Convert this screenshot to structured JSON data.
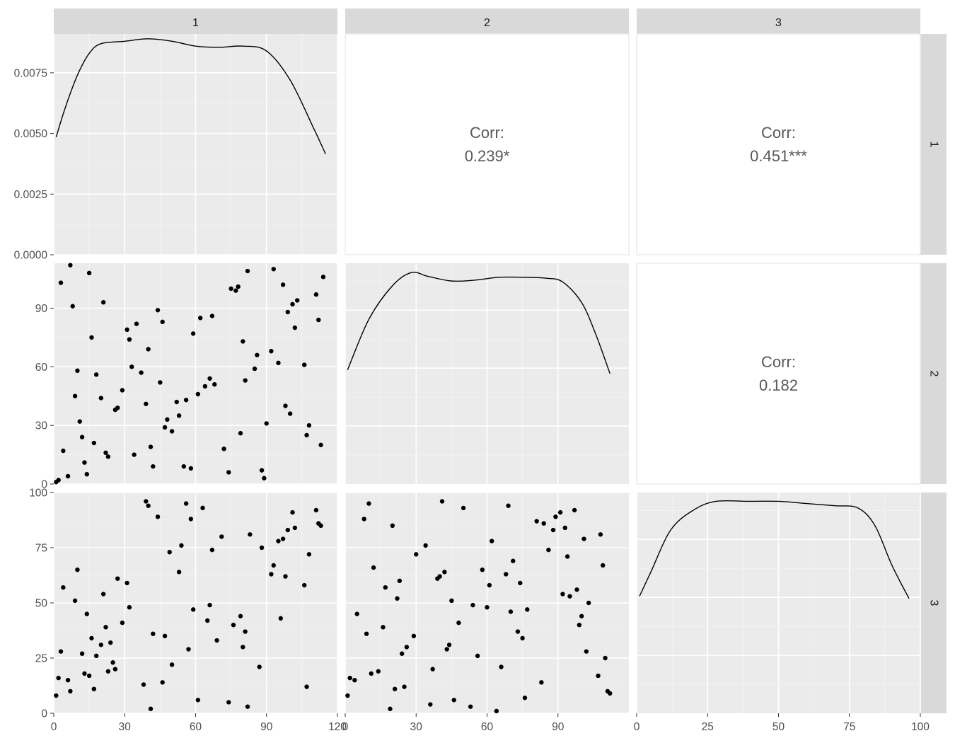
{
  "variables": [
    "1",
    "2",
    "3"
  ],
  "colors": {
    "panel_bg": "#ebebeb",
    "grid_major": "#ffffff",
    "grid_minor": "#f4f4f4",
    "strip_bg": "#d9d9d9",
    "point": "#000000",
    "line": "#000000",
    "corr_text": "#595959",
    "axis_text": "#4d4d4d"
  },
  "chart_data": {
    "type": "scatter",
    "kind": "scatterplot-matrix (GGally ggpairs)",
    "variables": [
      "1",
      "2",
      "3"
    ],
    "upper_panels": [
      {
        "row": "1",
        "col": "2",
        "label": "Corr:",
        "value": "0.239*"
      },
      {
        "row": "1",
        "col": "3",
        "label": "Corr:",
        "value": "0.451***"
      },
      {
        "row": "2",
        "col": "3",
        "label": "Corr:",
        "value": "0.182"
      }
    ],
    "axes": {
      "x": {
        "1": {
          "range": [
            0,
            120
          ],
          "ticks": [
            0,
            30,
            60,
            90,
            120
          ],
          "tick_labels": [
            "0",
            "30",
            "60",
            "90",
            "120"
          ]
        },
        "2": {
          "range": [
            0,
            120
          ],
          "ticks": [
            0,
            30,
            60,
            90
          ],
          "tick_labels": [
            "0",
            "30",
            "60",
            "90"
          ]
        },
        "3": {
          "range": [
            0,
            100
          ],
          "ticks": [
            0,
            25,
            50,
            75,
            100
          ],
          "tick_labels": [
            "0",
            "25",
            "50",
            "75",
            "100"
          ]
        }
      },
      "y": {
        "density_1": {
          "range": [
            0,
            0.0091
          ],
          "ticks": [
            0,
            0.0025,
            0.005,
            0.0075
          ],
          "tick_labels": [
            "0.0000",
            "0.0025",
            "0.0050",
            "0.0075"
          ]
        },
        "2": {
          "range": [
            0,
            113
          ],
          "ticks": [
            0,
            30,
            60,
            90
          ],
          "tick_labels": [
            "0",
            "30",
            "60",
            "90"
          ]
        },
        "3": {
          "range": [
            0,
            100
          ],
          "ticks": [
            0,
            25,
            50,
            75,
            100
          ],
          "tick_labels": [
            "0",
            "25",
            "50",
            "75",
            "100"
          ]
        }
      }
    },
    "densities": {
      "1": [
        [
          1,
          0.00485
        ],
        [
          5,
          0.0061
        ],
        [
          10,
          0.0074
        ],
        [
          15,
          0.0083
        ],
        [
          20,
          0.0087
        ],
        [
          30,
          0.0088
        ],
        [
          40,
          0.0089
        ],
        [
          50,
          0.0088
        ],
        [
          60,
          0.0086
        ],
        [
          70,
          0.00855
        ],
        [
          80,
          0.0086
        ],
        [
          90,
          0.0084
        ],
        [
          100,
          0.0072
        ],
        [
          110,
          0.0052
        ],
        [
          115,
          0.00415
        ]
      ],
      "2": [
        [
          1,
          0.0061
        ],
        [
          10,
          0.0088
        ],
        [
          20,
          0.0106
        ],
        [
          28,
          0.0113
        ],
        [
          35,
          0.0111
        ],
        [
          45,
          0.01085
        ],
        [
          55,
          0.0109
        ],
        [
          65,
          0.01105
        ],
        [
          75,
          0.01105
        ],
        [
          85,
          0.011
        ],
        [
          92,
          0.0108
        ],
        [
          100,
          0.0097
        ],
        [
          106,
          0.008
        ],
        [
          112,
          0.0059
        ]
      ],
      "3": [
        [
          1,
          0.0053
        ],
        [
          5,
          0.0064
        ],
        [
          12,
          0.0083
        ],
        [
          20,
          0.0092
        ],
        [
          28,
          0.0096
        ],
        [
          40,
          0.0096
        ],
        [
          50,
          0.0096
        ],
        [
          60,
          0.0095
        ],
        [
          70,
          0.0094
        ],
        [
          78,
          0.0093
        ],
        [
          84,
          0.0085
        ],
        [
          90,
          0.0067
        ],
        [
          96,
          0.0052
        ]
      ]
    },
    "density_y_max": {
      "1": 0.0091,
      "2": 0.0118,
      "3": 0.01
    },
    "scatter_2_vs_1": [
      [
        1,
        1
      ],
      [
        2,
        2
      ],
      [
        3,
        103
      ],
      [
        4,
        17
      ],
      [
        6,
        4
      ],
      [
        7,
        112
      ],
      [
        8,
        91
      ],
      [
        9,
        45
      ],
      [
        10,
        58
      ],
      [
        11,
        32
      ],
      [
        12,
        24
      ],
      [
        13,
        11
      ],
      [
        14,
        5
      ],
      [
        15,
        108
      ],
      [
        16,
        75
      ],
      [
        17,
        21
      ],
      [
        18,
        56
      ],
      [
        20,
        44
      ],
      [
        21,
        93
      ],
      [
        22,
        16
      ],
      [
        23,
        14
      ],
      [
        26,
        38
      ],
      [
        27,
        39
      ],
      [
        29,
        48
      ],
      [
        31,
        79
      ],
      [
        32,
        74
      ],
      [
        33,
        60
      ],
      [
        34,
        15
      ],
      [
        35,
        82
      ],
      [
        37,
        57
      ],
      [
        39,
        41
      ],
      [
        40,
        69
      ],
      [
        41,
        19
      ],
      [
        42,
        9
      ],
      [
        44,
        89
      ],
      [
        45,
        52
      ],
      [
        46,
        83
      ],
      [
        47,
        29
      ],
      [
        48,
        33
      ],
      [
        50,
        27
      ],
      [
        52,
        42
      ],
      [
        53,
        35
      ],
      [
        55,
        9
      ],
      [
        56,
        43
      ],
      [
        58,
        8
      ],
      [
        59,
        77
      ],
      [
        61,
        46
      ],
      [
        62,
        85
      ],
      [
        64,
        50
      ],
      [
        66,
        54
      ],
      [
        67,
        86
      ],
      [
        68,
        51
      ],
      [
        72,
        18
      ],
      [
        74,
        6
      ],
      [
        75,
        100
      ],
      [
        77,
        99
      ],
      [
        78,
        101
      ],
      [
        79,
        26
      ],
      [
        80,
        73
      ],
      [
        81,
        53
      ],
      [
        82,
        109
      ],
      [
        85,
        59
      ],
      [
        86,
        66
      ],
      [
        88,
        7
      ],
      [
        89,
        3
      ],
      [
        90,
        31
      ],
      [
        92,
        68
      ],
      [
        93,
        110
      ],
      [
        95,
        62
      ],
      [
        97,
        102
      ],
      [
        98,
        40
      ],
      [
        99,
        88
      ],
      [
        100,
        36
      ],
      [
        101,
        92
      ],
      [
        102,
        80
      ],
      [
        103,
        94
      ],
      [
        106,
        61
      ],
      [
        107,
        25
      ],
      [
        108,
        30
      ],
      [
        111,
        97
      ],
      [
        112,
        84
      ],
      [
        113,
        20
      ],
      [
        114,
        106
      ]
    ],
    "scatter_3_vs_1": [
      [
        1,
        8
      ],
      [
        2,
        16
      ],
      [
        3,
        28
      ],
      [
        4,
        57
      ],
      [
        6,
        15
      ],
      [
        7,
        10
      ],
      [
        9,
        51
      ],
      [
        10,
        65
      ],
      [
        12,
        27
      ],
      [
        13,
        18
      ],
      [
        14,
        45
      ],
      [
        15,
        17
      ],
      [
        16,
        34
      ],
      [
        17,
        11
      ],
      [
        18,
        26
      ],
      [
        20,
        31
      ],
      [
        21,
        54
      ],
      [
        22,
        39
      ],
      [
        23,
        19
      ],
      [
        24,
        32
      ],
      [
        25,
        23
      ],
      [
        26,
        20
      ],
      [
        27,
        61
      ],
      [
        29,
        41
      ],
      [
        31,
        59
      ],
      [
        32,
        48
      ],
      [
        38,
        13
      ],
      [
        39,
        96
      ],
      [
        40,
        94
      ],
      [
        41,
        2
      ],
      [
        42,
        36
      ],
      [
        44,
        89
      ],
      [
        46,
        14
      ],
      [
        47,
        35
      ],
      [
        49,
        73
      ],
      [
        50,
        22
      ],
      [
        53,
        64
      ],
      [
        54,
        76
      ],
      [
        56,
        95
      ],
      [
        57,
        29
      ],
      [
        58,
        88
      ],
      [
        59,
        47
      ],
      [
        61,
        6
      ],
      [
        63,
        93
      ],
      [
        65,
        42
      ],
      [
        66,
        49
      ],
      [
        67,
        74
      ],
      [
        69,
        33
      ],
      [
        71,
        80
      ],
      [
        74,
        5
      ],
      [
        76,
        40
      ],
      [
        79,
        44
      ],
      [
        80,
        30
      ],
      [
        81,
        37
      ],
      [
        82,
        3
      ],
      [
        83,
        81
      ],
      [
        87,
        21
      ],
      [
        88,
        75
      ],
      [
        92,
        63
      ],
      [
        93,
        67
      ],
      [
        95,
        78
      ],
      [
        96,
        43
      ],
      [
        97,
        79
      ],
      [
        98,
        62
      ],
      [
        99,
        83
      ],
      [
        101,
        91
      ],
      [
        102,
        84
      ],
      [
        106,
        58
      ],
      [
        107,
        12
      ],
      [
        108,
        72
      ],
      [
        111,
        92
      ],
      [
        112,
        86
      ],
      [
        113,
        85
      ]
    ],
    "scatter_3_vs_2": [
      [
        1,
        8
      ],
      [
        2,
        16
      ],
      [
        4,
        15
      ],
      [
        5,
        45
      ],
      [
        8,
        88
      ],
      [
        9,
        36
      ],
      [
        10,
        95
      ],
      [
        11,
        18
      ],
      [
        12,
        66
      ],
      [
        14,
        19
      ],
      [
        16,
        39
      ],
      [
        17,
        57
      ],
      [
        19,
        2
      ],
      [
        20,
        85
      ],
      [
        21,
        11
      ],
      [
        22,
        52
      ],
      [
        23,
        60
      ],
      [
        24,
        27
      ],
      [
        25,
        12
      ],
      [
        26,
        30
      ],
      [
        29,
        35
      ],
      [
        30,
        72
      ],
      [
        34,
        76
      ],
      [
        36,
        4
      ],
      [
        37,
        20
      ],
      [
        39,
        61
      ],
      [
        40,
        62
      ],
      [
        41,
        96
      ],
      [
        42,
        64
      ],
      [
        43,
        29
      ],
      [
        44,
        31
      ],
      [
        45,
        51
      ],
      [
        46,
        6
      ],
      [
        48,
        41
      ],
      [
        50,
        93
      ],
      [
        53,
        3
      ],
      [
        54,
        49
      ],
      [
        56,
        26
      ],
      [
        58,
        65
      ],
      [
        60,
        48
      ],
      [
        61,
        58
      ],
      [
        62,
        78
      ],
      [
        64,
        1
      ],
      [
        66,
        21
      ],
      [
        68,
        63
      ],
      [
        69,
        94
      ],
      [
        70,
        46
      ],
      [
        71,
        69
      ],
      [
        73,
        37
      ],
      [
        74,
        59
      ],
      [
        75,
        34
      ],
      [
        76,
        7
      ],
      [
        77,
        47
      ],
      [
        81,
        87
      ],
      [
        83,
        14
      ],
      [
        84,
        86
      ],
      [
        86,
        74
      ],
      [
        88,
        83
      ],
      [
        89,
        89
      ],
      [
        91,
        91
      ],
      [
        92,
        54
      ],
      [
        93,
        84
      ],
      [
        94,
        71
      ],
      [
        95,
        53
      ],
      [
        97,
        92
      ],
      [
        98,
        56
      ],
      [
        99,
        40
      ],
      [
        100,
        44
      ],
      [
        101,
        79
      ],
      [
        102,
        28
      ],
      [
        103,
        50
      ],
      [
        107,
        17
      ],
      [
        108,
        81
      ],
      [
        109,
        67
      ],
      [
        110,
        25
      ],
      [
        111,
        10
      ],
      [
        112,
        9
      ]
    ]
  }
}
